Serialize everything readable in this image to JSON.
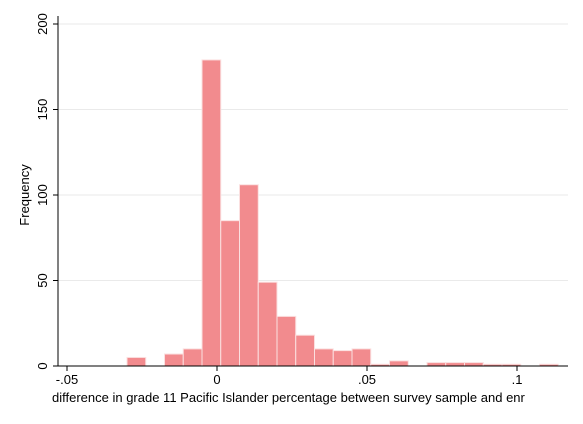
{
  "chart_data": {
    "type": "bar",
    "subtype": "histogram",
    "title": "",
    "xlabel": "difference in grade 11 Pacific Islander percentage between survey sample and enr",
    "ylabel": "Frequency",
    "xlim": [
      -0.055,
      0.118
    ],
    "ylim": [
      0,
      200
    ],
    "x_ticks": [
      {
        "value": -0.05,
        "label": "-.05"
      },
      {
        "value": 0,
        "label": "0"
      },
      {
        "value": 0.05,
        "label": ".05"
      },
      {
        "value": 0.1,
        "label": ".1"
      }
    ],
    "y_ticks": [
      {
        "value": 0,
        "label": "0"
      },
      {
        "value": 50,
        "label": "50"
      },
      {
        "value": 100,
        "label": "100"
      },
      {
        "value": 150,
        "label": "150"
      },
      {
        "value": 200,
        "label": "200"
      }
    ],
    "grid": "horizontal",
    "bin_width": 0.00625,
    "bins": [
      {
        "start": -0.03,
        "count": 5
      },
      {
        "start": -0.0175,
        "count": 7
      },
      {
        "start": -0.01125,
        "count": 10
      },
      {
        "start": -0.005,
        "count": 179
      },
      {
        "start": 0.00125,
        "count": 85
      },
      {
        "start": 0.0075,
        "count": 106
      },
      {
        "start": 0.01375,
        "count": 49
      },
      {
        "start": 0.02,
        "count": 29
      },
      {
        "start": 0.02625,
        "count": 18
      },
      {
        "start": 0.0325,
        "count": 10
      },
      {
        "start": 0.03875,
        "count": 9
      },
      {
        "start": 0.045,
        "count": 10
      },
      {
        "start": 0.05125,
        "count": 1
      },
      {
        "start": 0.0575,
        "count": 3
      },
      {
        "start": 0.07,
        "count": 2
      },
      {
        "start": 0.07625,
        "count": 2
      },
      {
        "start": 0.0825,
        "count": 2
      },
      {
        "start": 0.08875,
        "count": 1
      },
      {
        "start": 0.095,
        "count": 1
      },
      {
        "start": 0.1075,
        "count": 1
      }
    ],
    "colors": {
      "bar_fill": "#f28b8e",
      "bar_stroke": "#fbe0e0",
      "grid": "#eaeaea",
      "axis": "#000000"
    }
  }
}
